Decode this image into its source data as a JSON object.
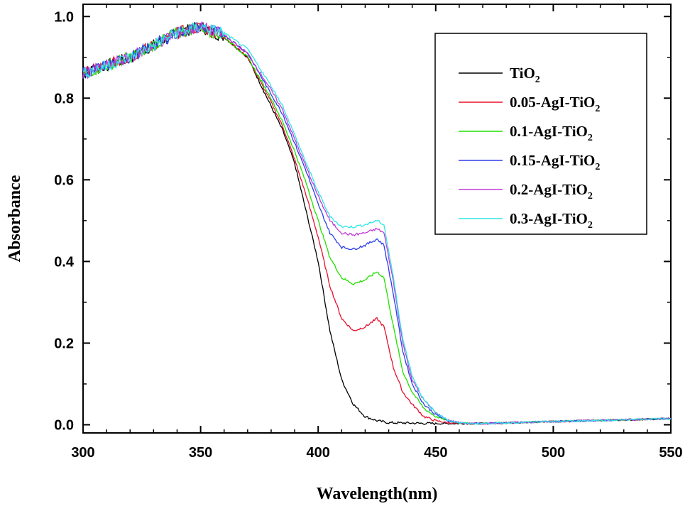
{
  "chart_data": {
    "type": "line",
    "xlabel": "Wavelength(nm)",
    "ylabel": "Absorbance",
    "xlim": [
      300,
      550
    ],
    "ylim": [
      -0.02,
      1.03
    ],
    "xticks": [
      300,
      350,
      400,
      450,
      500,
      550
    ],
    "yticks": [
      0.0,
      0.2,
      0.4,
      0.6,
      0.8,
      1.0
    ],
    "xtick_labels": [
      "300",
      "350",
      "400",
      "450",
      "500",
      "550"
    ],
    "ytick_labels": [
      "0.0",
      "0.2",
      "0.4",
      "0.6",
      "0.8",
      "1.0"
    ],
    "grid": false,
    "legend_position": "top-right",
    "series": [
      {
        "name": "TiO2",
        "name_main": "TiO",
        "name_sub": "2",
        "color": "#000000",
        "x": [
          300,
          320,
          340,
          350,
          360,
          370,
          380,
          385,
          390,
          395,
          400,
          405,
          410,
          415,
          420,
          425,
          430,
          440,
          450,
          470,
          500,
          550
        ],
        "y": [
          0.86,
          0.9,
          0.96,
          0.975,
          0.95,
          0.9,
          0.78,
          0.72,
          0.64,
          0.52,
          0.4,
          0.23,
          0.11,
          0.05,
          0.02,
          0.01,
          0.005,
          0.004,
          0.003,
          0.003,
          0.008,
          0.015
        ]
      },
      {
        "name": "0.05-AgI-TiO2",
        "name_main": "0.05-AgI-TiO",
        "name_sub": "2",
        "color": "#e8112d",
        "x": [
          300,
          320,
          340,
          350,
          360,
          370,
          380,
          385,
          390,
          395,
          400,
          405,
          410,
          415,
          420,
          425,
          428,
          432,
          436,
          440,
          445,
          450,
          455,
          460,
          465,
          470,
          500,
          550
        ],
        "y": [
          0.86,
          0.9,
          0.96,
          0.975,
          0.95,
          0.9,
          0.79,
          0.73,
          0.65,
          0.56,
          0.46,
          0.34,
          0.26,
          0.23,
          0.24,
          0.26,
          0.24,
          0.14,
          0.08,
          0.05,
          0.02,
          0.01,
          0.005,
          0.003,
          0.003,
          0.003,
          0.008,
          0.015
        ]
      },
      {
        "name": "0.1-AgI-TiO2",
        "name_main": "0.1-AgI-TiO",
        "name_sub": "2",
        "color": "#22e000",
        "x": [
          300,
          320,
          340,
          350,
          360,
          370,
          380,
          385,
          390,
          395,
          400,
          405,
          410,
          415,
          420,
          425,
          428,
          432,
          436,
          440,
          445,
          450,
          455,
          460,
          465,
          470,
          500,
          550
        ],
        "y": [
          0.86,
          0.9,
          0.96,
          0.975,
          0.95,
          0.9,
          0.8,
          0.74,
          0.67,
          0.59,
          0.5,
          0.41,
          0.36,
          0.345,
          0.355,
          0.375,
          0.36,
          0.24,
          0.13,
          0.08,
          0.04,
          0.02,
          0.01,
          0.005,
          0.003,
          0.003,
          0.008,
          0.015
        ]
      },
      {
        "name": "0.15-AgI-TiO2",
        "name_main": "0.15-AgI-TiO",
        "name_sub": "2",
        "color": "#2b3ee8",
        "x": [
          300,
          320,
          340,
          350,
          360,
          370,
          380,
          385,
          390,
          395,
          400,
          405,
          410,
          415,
          420,
          425,
          428,
          432,
          436,
          440,
          445,
          450,
          455,
          460,
          465,
          470,
          500,
          550
        ],
        "y": [
          0.86,
          0.9,
          0.96,
          0.975,
          0.955,
          0.91,
          0.81,
          0.76,
          0.69,
          0.62,
          0.54,
          0.47,
          0.435,
          0.43,
          0.44,
          0.455,
          0.44,
          0.32,
          0.18,
          0.1,
          0.05,
          0.025,
          0.01,
          0.005,
          0.003,
          0.003,
          0.008,
          0.015
        ]
      },
      {
        "name": "0.2-AgI-TiO2",
        "name_main": "0.2-AgI-TiO",
        "name_sub": "2",
        "color": "#c23ad8",
        "x": [
          300,
          320,
          340,
          350,
          360,
          370,
          380,
          385,
          390,
          395,
          400,
          405,
          410,
          415,
          420,
          425,
          428,
          432,
          436,
          440,
          445,
          450,
          455,
          460,
          465,
          470,
          500,
          550
        ],
        "y": [
          0.86,
          0.9,
          0.96,
          0.975,
          0.955,
          0.91,
          0.82,
          0.77,
          0.7,
          0.63,
          0.56,
          0.5,
          0.47,
          0.465,
          0.47,
          0.48,
          0.47,
          0.35,
          0.2,
          0.11,
          0.06,
          0.03,
          0.012,
          0.005,
          0.003,
          0.003,
          0.008,
          0.015
        ]
      },
      {
        "name": "0.3-AgI-TiO2",
        "name_main": "0.3-AgI-TiO",
        "name_sub": "2",
        "color": "#2fe6e6",
        "x": [
          300,
          320,
          340,
          350,
          360,
          370,
          380,
          385,
          390,
          395,
          400,
          405,
          410,
          415,
          420,
          425,
          428,
          432,
          436,
          440,
          445,
          450,
          455,
          460,
          465,
          470,
          500,
          550
        ],
        "y": [
          0.86,
          0.9,
          0.96,
          0.975,
          0.96,
          0.92,
          0.83,
          0.78,
          0.71,
          0.64,
          0.57,
          0.51,
          0.485,
          0.485,
          0.49,
          0.5,
          0.49,
          0.36,
          0.21,
          0.12,
          0.06,
          0.03,
          0.012,
          0.005,
          0.003,
          0.003,
          0.008,
          0.015
        ]
      }
    ]
  }
}
